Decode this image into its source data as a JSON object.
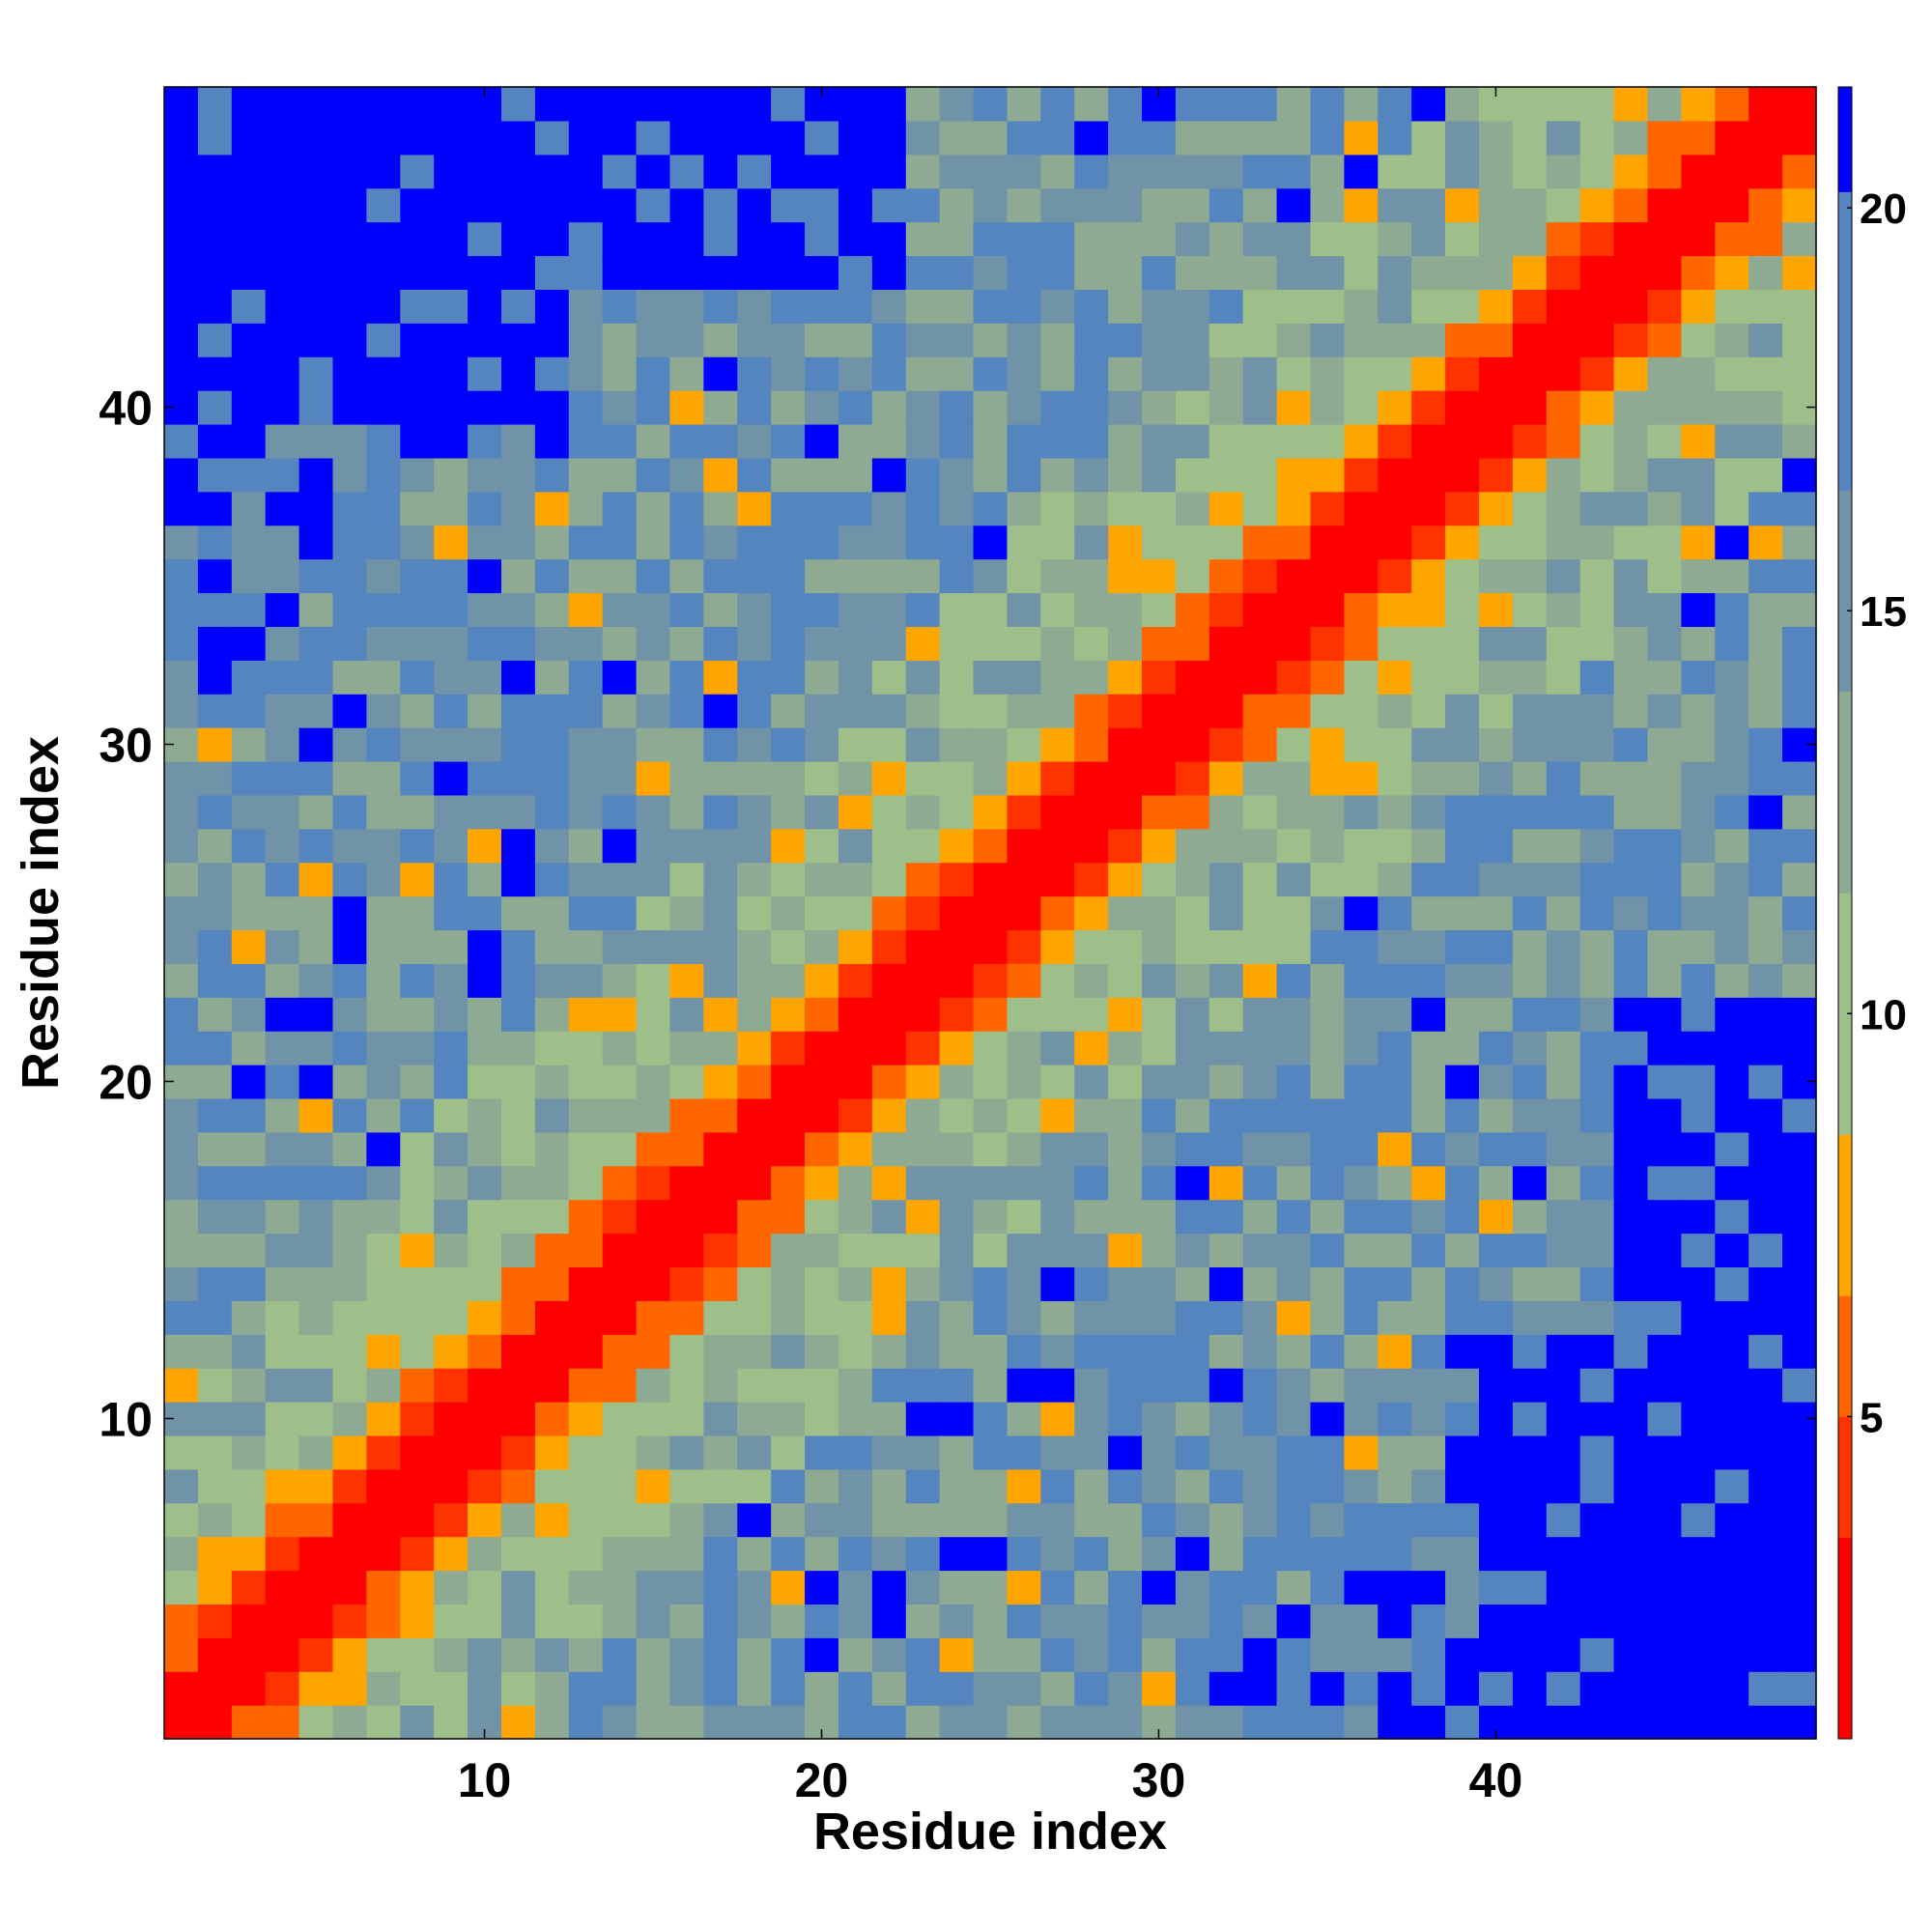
{
  "chart_data": {
    "type": "heatmap",
    "title": "",
    "xlabel": "Residue index",
    "ylabel": "Residue index",
    "n_residues": 49,
    "xlim": [
      0.5,
      49.5
    ],
    "ylim": [
      0.5,
      49.5
    ],
    "xticks": [
      10,
      20,
      30,
      40
    ],
    "yticks": [
      10,
      20,
      30,
      40
    ],
    "colorbar": {
      "ticks": [
        5,
        10,
        15,
        20
      ],
      "range": [
        1,
        21.5
      ],
      "segments": [
        {
          "from": 1.0,
          "to": 3.5,
          "color": "#ff0000"
        },
        {
          "from": 3.5,
          "to": 5.0,
          "color": "#ff3300"
        },
        {
          "from": 5.0,
          "to": 6.5,
          "color": "#ff6600"
        },
        {
          "from": 6.5,
          "to": 8.5,
          "color": "#ffa500"
        },
        {
          "from": 8.5,
          "to": 11.5,
          "color": "#9fbf8a"
        },
        {
          "from": 11.5,
          "to": 14.0,
          "color": "#8eaa92"
        },
        {
          "from": 14.0,
          "to": 16.5,
          "color": "#7093a8"
        },
        {
          "from": 16.5,
          "to": 20.2,
          "color": "#5585be"
        },
        {
          "from": 20.2,
          "to": 21.5,
          "color": "#0000ff"
        }
      ]
    },
    "colors": {
      "red": "#ff0000",
      "red_orange": "#ff3300",
      "dark_orange": "#ff6600",
      "orange": "#ffa500",
      "light_green": "#9fbf8a",
      "gray_green": "#8eaa92",
      "gray_blue": "#7093a8",
      "steel_blue": "#5585be",
      "blue": "#0000ff"
    },
    "value_rule": "distance matrix d(i,j): red on diagonal band (|i-j|<=1), orange shades for near neighbours, green/blue-gray mid range, saturated blue for far pairs"
  }
}
